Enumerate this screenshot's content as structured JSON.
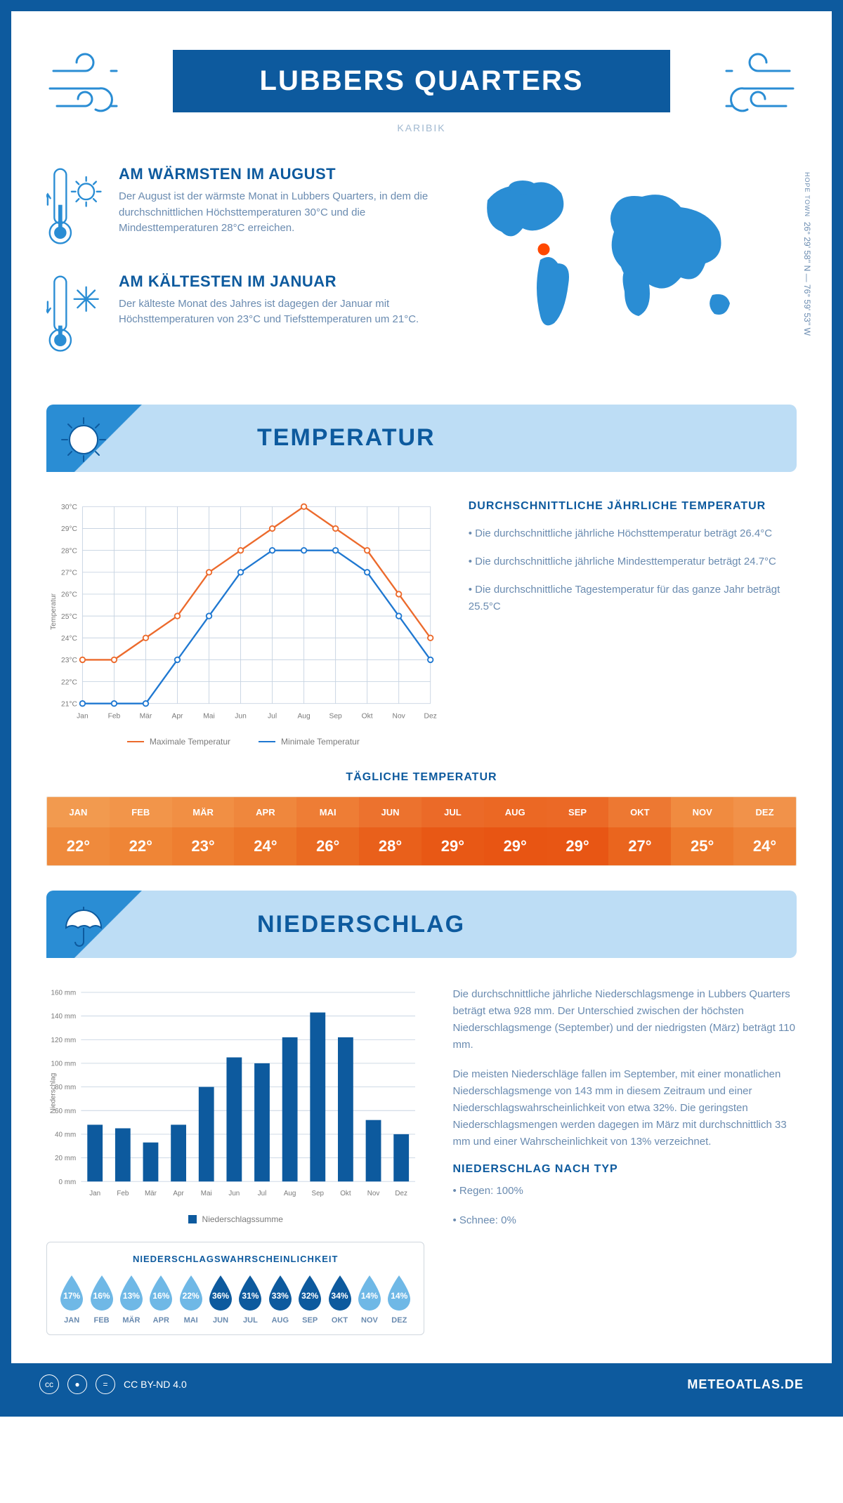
{
  "title": "LUBBERS QUARTERS",
  "subtitle": "KARIBIK",
  "coords_line1": "26° 29' 58'' N — 76° 59' 53'' W",
  "coords_place": "HOPE TOWN",
  "colors": {
    "primary": "#0d5a9e",
    "light_blue": "#bdddf5",
    "mid_blue": "#2a8dd4",
    "sky": "#6fb8e6",
    "text_muted": "#6a8bb0",
    "line_max": "#ec6a2c",
    "line_min": "#1f78d1",
    "grid": "#c8d4e2"
  },
  "facts": {
    "warm": {
      "title": "AM WÄRMSTEN IM AUGUST",
      "body": "Der August ist der wärmste Monat in Lubbers Quarters, in dem die durchschnittlichen Höchsttemperaturen 30°C und die Mindesttemperaturen 28°C erreichen."
    },
    "cold": {
      "title": "AM KÄLTESTEN IM JANUAR",
      "body": "Der kälteste Monat des Jahres ist dagegen der Januar mit Höchsttemperaturen von 23°C und Tiefsttemperaturen um 21°C."
    }
  },
  "months_short": [
    "Jan",
    "Feb",
    "Mär",
    "Apr",
    "Mai",
    "Jun",
    "Jul",
    "Aug",
    "Sep",
    "Okt",
    "Nov",
    "Dez"
  ],
  "months_upper": [
    "JAN",
    "FEB",
    "MÄR",
    "APR",
    "MAI",
    "JUN",
    "JUL",
    "AUG",
    "SEP",
    "OKT",
    "NOV",
    "DEZ"
  ],
  "temperature": {
    "section_title": "TEMPERATUR",
    "y_ticks": [
      21,
      22,
      23,
      24,
      25,
      26,
      27,
      28,
      29,
      30
    ],
    "y_label": "Temperatur",
    "max": [
      23,
      23,
      24,
      25,
      27,
      28,
      29,
      30,
      29,
      28,
      26,
      24
    ],
    "min": [
      21,
      21,
      21,
      23,
      25,
      27,
      28,
      28,
      28,
      27,
      25,
      23
    ],
    "legend_max": "Maximale Temperatur",
    "legend_min": "Minimale Temperatur",
    "stats_title": "DURCHSCHNITTLICHE JÄHRLICHE TEMPERATUR",
    "stat1": "• Die durchschnittliche jährliche Höchsttemperatur beträgt 26.4°C",
    "stat2": "• Die durchschnittliche jährliche Mindesttemperatur beträgt 24.7°C",
    "stat3": "• Die durchschnittliche Tagestemperatur für das ganze Jahr beträgt 25.5°C",
    "daily_title": "TÄGLICHE TEMPERATUR",
    "daily_values": [
      "22°",
      "22°",
      "23°",
      "24°",
      "26°",
      "28°",
      "29°",
      "29°",
      "29°",
      "27°",
      "25°",
      "24°"
    ],
    "daily_head_colors": [
      "#f29a4f",
      "#f2954a",
      "#f18f44",
      "#ef873d",
      "#ee7d35",
      "#ec722e",
      "#eb6a28",
      "#eb6824",
      "#eb6926",
      "#ed7832",
      "#f08b40",
      "#f1924a"
    ],
    "daily_body_colors": [
      "#ef8a3c",
      "#ef8536",
      "#ee7e30",
      "#ec7629",
      "#ea6b22",
      "#e9601b",
      "#e85815",
      "#e85513",
      "#e85614",
      "#ea651e",
      "#ed7a2d",
      "#ee8337"
    ]
  },
  "precipitation": {
    "section_title": "NIEDERSCHLAG",
    "y_label": "Niederschlag",
    "y_ticks": [
      0,
      20,
      40,
      60,
      80,
      100,
      120,
      140,
      160
    ],
    "values": [
      48,
      45,
      33,
      48,
      80,
      105,
      100,
      122,
      143,
      122,
      52,
      40
    ],
    "bar_color": "#0d5a9e",
    "legend": "Niederschlagssumme",
    "body1": "Die durchschnittliche jährliche Niederschlagsmenge in Lubbers Quarters beträgt etwa 928 mm. Der Unterschied zwischen der höchsten Niederschlagsmenge (September) und der niedrigsten (März) beträgt 110 mm.",
    "body2": "Die meisten Niederschläge fallen im September, mit einer monatlichen Niederschlagsmenge von 143 mm in diesem Zeitraum und einer Niederschlagswahrscheinlichkeit von etwa 32%. Die geringsten Niederschlagsmengen werden dagegen im März mit durchschnittlich 33 mm und einer Wahrscheinlichkeit von 13% verzeichnet.",
    "type_title": "NIEDERSCHLAG NACH TYP",
    "type1": "• Regen: 100%",
    "type2": "• Schnee: 0%",
    "prob_title": "NIEDERSCHLAGSWAHRSCHEINLICHKEIT",
    "prob_values": [
      "17%",
      "16%",
      "13%",
      "16%",
      "22%",
      "36%",
      "31%",
      "33%",
      "32%",
      "34%",
      "14%",
      "14%"
    ],
    "prob_dark": [
      false,
      false,
      false,
      false,
      false,
      true,
      true,
      true,
      true,
      true,
      false,
      false
    ],
    "drop_light": "#6fb8e6",
    "drop_dark": "#0d5a9e"
  },
  "footer": {
    "license": "CC BY-ND 4.0",
    "brand": "METEOATLAS.DE"
  }
}
